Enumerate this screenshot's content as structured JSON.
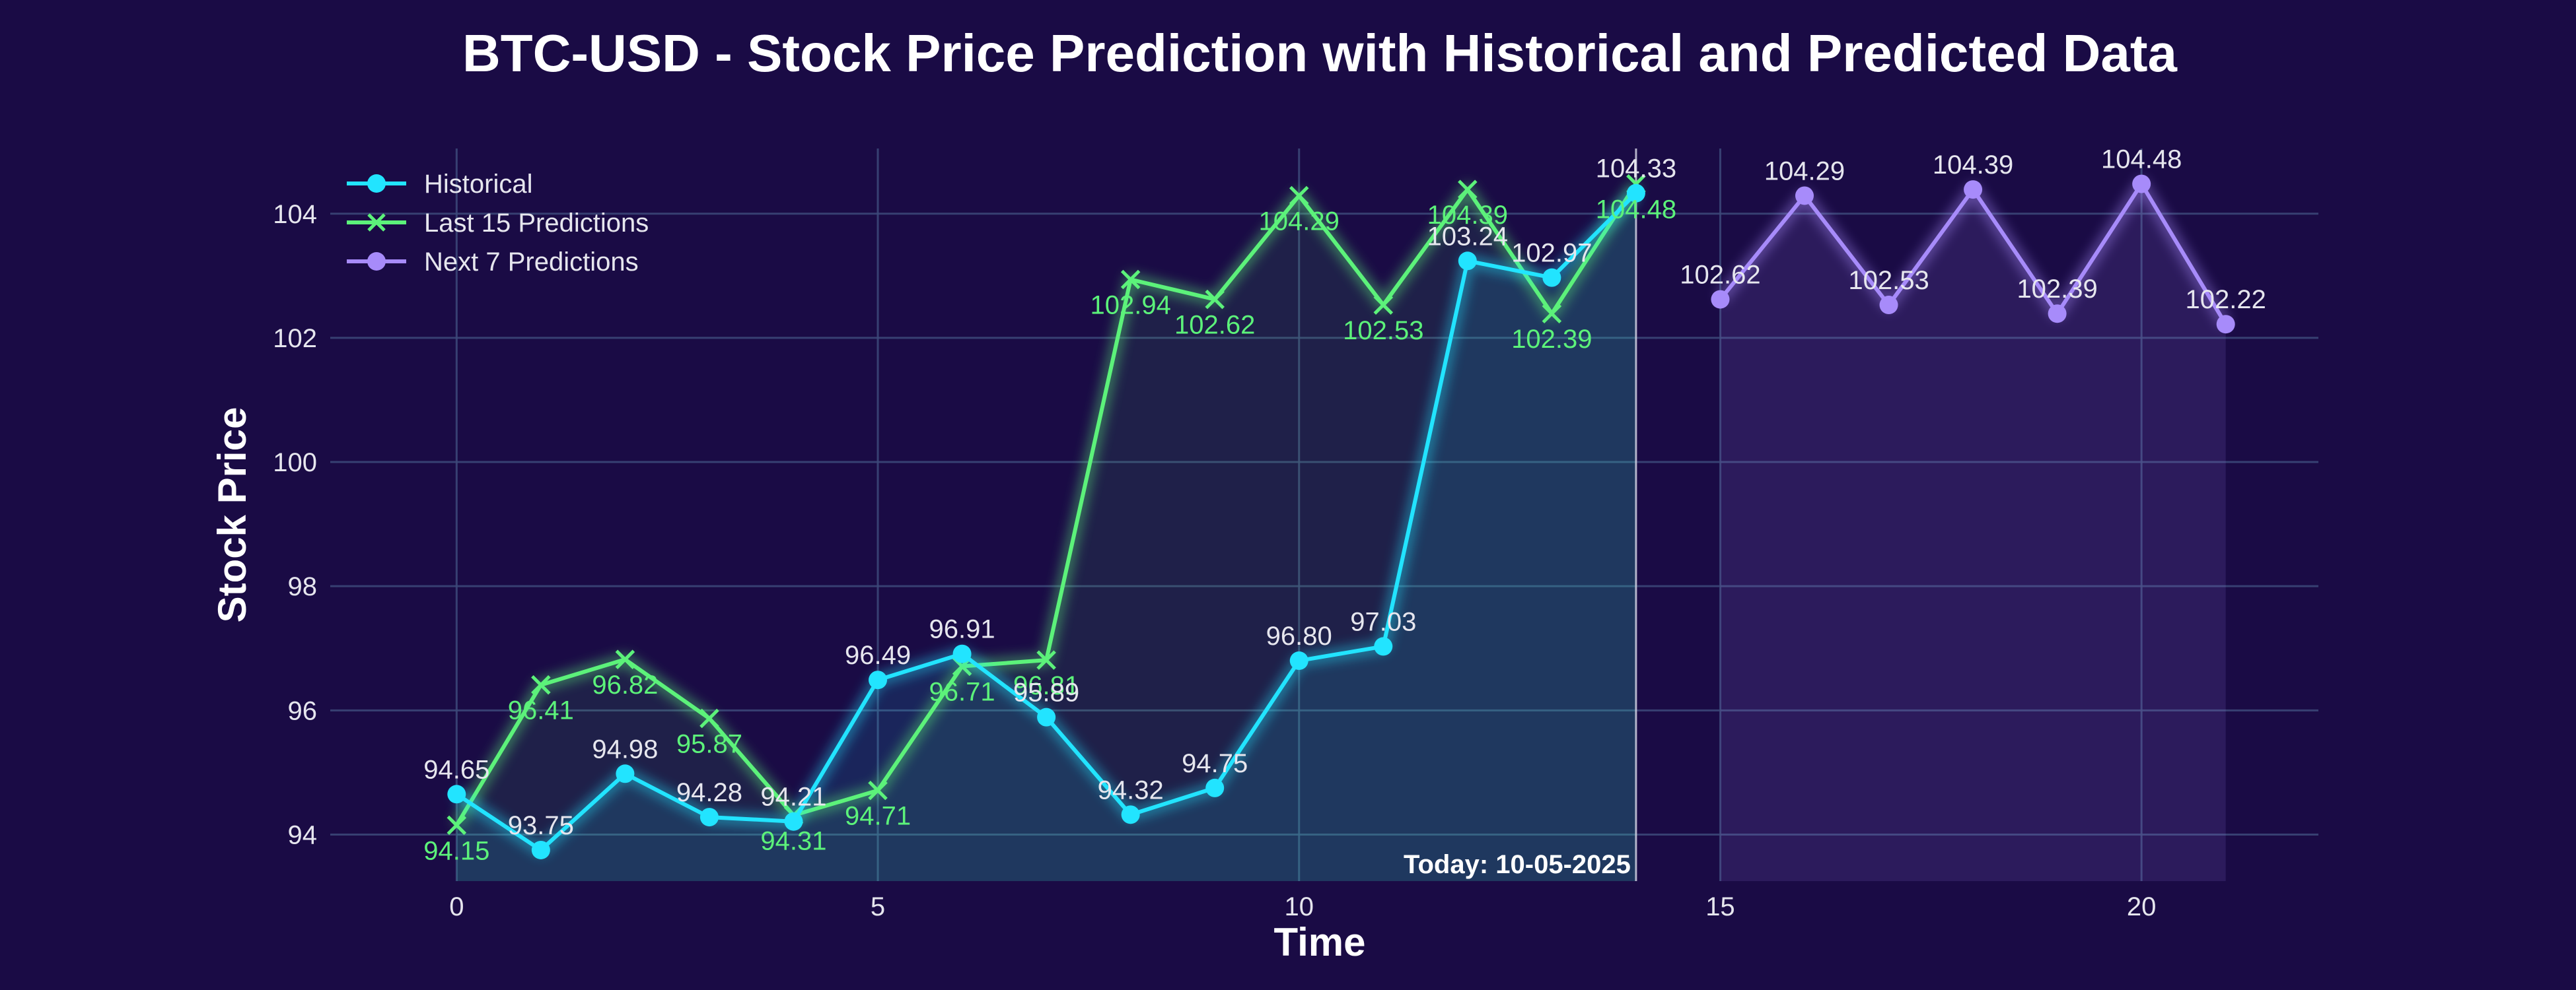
{
  "chart_data": {
    "type": "line",
    "title": "BTC-USD - Stock Price Prediction with Historical and Predicted Data",
    "xlabel": "Time",
    "ylabel": "Stock Price",
    "xlim": [
      -1.5,
      22.1
    ],
    "ylim": [
      93.25,
      105.05
    ],
    "x_ticks": [
      0,
      5,
      10,
      15,
      20
    ],
    "y_ticks": [
      94,
      96,
      98,
      100,
      102,
      104
    ],
    "grid": true,
    "legend_position": "top-left",
    "today_x": 14,
    "today_label": "Today: 10-05-2025",
    "series": [
      {
        "name": "Historical",
        "color": "#22e4ff",
        "marker": "circle",
        "x": [
          0,
          1,
          2,
          3,
          4,
          5,
          6,
          7,
          8,
          9,
          10,
          11,
          12,
          13,
          14
        ],
        "values": [
          94.65,
          93.75,
          94.98,
          94.28,
          94.21,
          96.49,
          96.91,
          95.89,
          94.32,
          94.75,
          96.8,
          97.03,
          103.24,
          102.97,
          104.33
        ],
        "labels": [
          "94.65",
          "93.75",
          "94.98",
          "94.28",
          "94.21",
          "96.49",
          "96.91",
          "95.89",
          "94.32",
          "94.75",
          "96.80",
          "97.03",
          "103.24",
          "102.97",
          "104.33"
        ]
      },
      {
        "name": "Last 15 Predictions",
        "color": "#5cf27a",
        "marker": "x",
        "x": [
          0,
          1,
          2,
          3,
          4,
          5,
          6,
          7,
          8,
          9,
          10,
          11,
          12,
          13,
          14
        ],
        "values": [
          94.15,
          96.41,
          96.82,
          95.87,
          94.31,
          94.71,
          96.71,
          96.81,
          102.94,
          102.62,
          104.29,
          102.53,
          104.39,
          102.39,
          104.48
        ],
        "labels": [
          "94.15",
          "96.41",
          "96.82",
          "95.87",
          "94.31",
          "94.71",
          "96.71",
          "96.81",
          "102.94",
          "102.62",
          "104.29",
          "102.53",
          "104.39",
          "102.39",
          "104.48"
        ]
      },
      {
        "name": "Next 7 Predictions",
        "color": "#a78bfa",
        "marker": "circle",
        "x": [
          15,
          16,
          17,
          18,
          19,
          20,
          21
        ],
        "values": [
          102.62,
          104.29,
          102.53,
          104.39,
          102.39,
          104.48,
          102.22
        ],
        "labels": [
          "102.62",
          "104.29",
          "102.53",
          "104.39",
          "102.39",
          "104.48",
          "102.22"
        ]
      }
    ]
  }
}
